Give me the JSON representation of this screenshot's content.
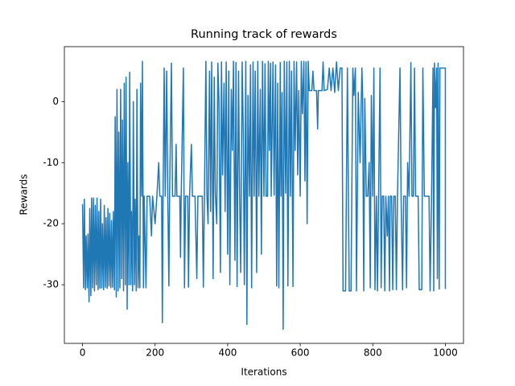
{
  "chart_data": {
    "type": "line",
    "title": "Running track of rewards",
    "x_label": "Iterations",
    "y_label": "Rewards",
    "x": [
      0,
      3,
      5,
      8,
      10,
      13,
      15,
      18,
      20,
      23,
      25,
      28,
      30,
      33,
      35,
      38,
      40,
      43,
      45,
      48,
      50,
      53,
      55,
      58,
      60,
      63,
      65,
      68,
      70,
      73,
      75,
      78,
      80,
      83,
      85,
      88,
      90,
      93,
      95,
      98,
      100,
      103,
      105,
      108,
      110,
      113,
      115,
      118,
      120,
      123,
      125,
      128,
      130,
      133,
      135,
      138,
      140,
      143,
      145,
      148,
      150,
      153,
      155,
      158,
      160,
      163,
      165,
      168,
      170,
      175,
      178,
      185,
      190,
      193,
      200,
      205,
      210,
      213,
      218,
      220,
      222,
      225,
      228,
      232,
      235,
      238,
      240,
      245,
      248,
      255,
      258,
      260,
      268,
      270,
      272,
      278,
      281,
      284,
      290,
      292,
      295,
      300,
      303,
      310,
      315,
      318,
      330,
      333,
      336,
      340,
      343,
      346,
      350,
      353,
      356,
      360,
      363,
      366,
      370,
      373,
      376,
      380,
      383,
      386,
      390,
      393,
      396,
      400,
      403,
      406,
      410,
      413,
      416,
      420,
      423,
      426,
      430,
      433,
      436,
      440,
      443,
      446,
      450,
      453,
      456,
      460,
      463,
      466,
      470,
      473,
      476,
      480,
      483,
      486,
      490,
      493,
      496,
      500,
      503,
      506,
      510,
      512,
      515,
      518,
      520,
      525,
      528,
      532,
      535,
      538,
      541,
      545,
      547,
      550,
      553,
      556,
      560,
      563,
      566,
      570,
      573,
      576,
      580,
      583,
      586,
      590,
      593,
      596,
      600,
      603,
      606,
      610,
      613,
      616,
      619,
      622,
      625,
      632,
      635,
      638,
      645,
      648,
      650,
      660,
      663,
      666,
      675,
      680,
      685,
      690,
      695,
      700,
      705,
      710,
      715,
      718,
      725,
      730,
      735,
      740,
      745,
      748,
      752,
      755,
      760,
      765,
      770,
      772,
      775,
      778,
      782,
      786,
      790,
      793,
      796,
      800,
      803,
      806,
      810,
      813,
      816,
      820,
      823,
      826,
      830,
      833,
      836,
      840,
      843,
      846,
      848,
      852,
      855,
      858,
      862,
      865,
      868,
      875,
      878,
      882,
      885,
      890,
      893,
      896,
      900,
      905,
      908,
      912,
      915,
      918,
      925,
      928,
      935,
      938,
      942,
      950,
      955,
      958,
      962,
      966,
      968,
      970,
      973,
      976,
      978,
      980,
      983,
      985,
      1000,
      1000
    ],
    "series": [
      {
        "name": "rewards",
        "color": "#1f77b4",
        "values": [
          -16.8,
          -30.5,
          -16,
          -30.8,
          -22,
          -30.5,
          -21.7,
          -32.8,
          -17.5,
          -31.8,
          -15.8,
          -30.5,
          -15.8,
          -31,
          -17,
          -30,
          -15.8,
          -30.8,
          -18,
          -30.6,
          -16,
          -30.5,
          -20,
          -30.8,
          -17,
          -30.4,
          -19,
          -30.6,
          -17.5,
          -30.2,
          -18.3,
          -30.5,
          -19.5,
          -30.4,
          -18,
          -30.8,
          -2.5,
          -32,
          2,
          -31,
          -5,
          -30.5,
          2,
          -29,
          -3,
          -31,
          3,
          -30,
          4,
          -34,
          -10,
          -30,
          4.8,
          -30,
          -18,
          -31,
          0,
          -30,
          -16,
          -31,
          2,
          -30.5,
          -22,
          -30.5,
          3,
          -15.5,
          6.6,
          -30.5,
          -15.5,
          -30.5,
          -15.5,
          -15.5,
          -22,
          -15.5,
          -20,
          -15.5,
          -10,
          -15.5,
          -15.5,
          -36.2,
          -15.5,
          5.5,
          -15.5,
          5,
          -15.5,
          -30.2,
          -15.5,
          6.3,
          -15.5,
          -15.5,
          -7,
          -15.5,
          -15.5,
          -25.5,
          -15.5,
          5.5,
          -30.5,
          -15.5,
          -15.5,
          -30.4,
          -15.5,
          -7,
          -15.5,
          -15.5,
          -29,
          -15.5,
          -15.5,
          -30.4,
          -15.5,
          6.6,
          -15.5,
          -20,
          5,
          -18,
          6.5,
          -29,
          4,
          -15,
          -20,
          6.3,
          0,
          -28,
          6.5,
          -12,
          3,
          -18,
          6.5,
          -25,
          5,
          -30,
          2,
          -8,
          6.6,
          -26,
          6.4,
          -30.3,
          5,
          -15.5,
          -28,
          6.5,
          -5,
          -30,
          6.6,
          -36.5,
          1,
          -15.5,
          6,
          -30.5,
          6.5,
          -15.5,
          5,
          -28,
          6.6,
          -15.5,
          2,
          -25,
          6.6,
          -15.5,
          6.2,
          -15.5,
          -15.5,
          6.6,
          -8,
          6.3,
          -15.5,
          6.5,
          -15.3,
          6,
          -30.2,
          3,
          -30.5,
          6.4,
          -15.5,
          1.5,
          -37.3,
          6.6,
          -15,
          6.5,
          -30.2,
          6.6,
          -15.5,
          5,
          -30.3,
          6.6,
          -8,
          6.5,
          -12,
          1.8,
          -15.5,
          6.6,
          -2,
          6.6,
          -13,
          6.5,
          -20,
          6.6,
          1.8,
          1.8,
          5,
          1.8,
          1.8,
          -4.5,
          1.8,
          1.8,
          6.5,
          1.8,
          2,
          5.5,
          1.8,
          5.5,
          1.5,
          6.5,
          1.8,
          5.5,
          5.5,
          -31,
          -31,
          5.5,
          -31,
          -31,
          5.5,
          1,
          5.5,
          -31,
          1.5,
          -10,
          5.5,
          1,
          -31,
          0.5,
          -15.5,
          -15.5,
          -10,
          -30.5,
          1,
          -15.5,
          5.5,
          -30.8,
          -15.5,
          -31,
          -15.5,
          5.5,
          -30.5,
          -15.5,
          -15.5,
          -31,
          -15.5,
          -22,
          -15.5,
          -31,
          -15.5,
          -15.5,
          -30.8,
          -15.5,
          -15.5,
          -30.8,
          -15.5,
          5.5,
          -15.5,
          -30.8,
          -15.5,
          -15.5,
          -30.5,
          -10,
          -15.5,
          6.4,
          -15.5,
          -15.5,
          5.5,
          -15.5,
          -15.5,
          -30.8,
          -30.8,
          5.5,
          -15.5,
          -15.5,
          -15.5,
          -31,
          -15.5,
          5.5,
          -31,
          6.3,
          -1,
          5.5,
          -29,
          6.3,
          -30.7,
          5.5,
          5.5,
          -30.7
        ]
      }
    ],
    "xlim": [
      -50,
      1050
    ],
    "ylim": [
      -39.6,
      9.0
    ],
    "xticks": [
      0,
      200,
      400,
      600,
      800,
      1000
    ],
    "yticks": [
      -30,
      -20,
      -10,
      0
    ]
  }
}
